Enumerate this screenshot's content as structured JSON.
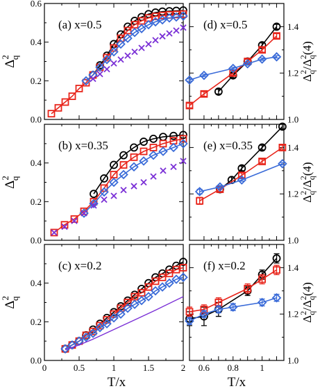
{
  "figure": {
    "x_label_left": "T/x",
    "x_label_right": "T/x",
    "y_label_left": {
      "base": "Δ",
      "sup": "2",
      "sub": "q"
    },
    "y_label_right": {
      "base1": "Δ",
      "sup1": "2",
      "sub1": "q",
      "slash": "/",
      "base2": "Δ",
      "sup2": "2",
      "sub2": "q",
      "arg": "(4)"
    }
  },
  "colors": {
    "black": "#000000",
    "red": "#e8251b",
    "blue": "#3a6bd8",
    "purple": "#7a2fd6"
  },
  "chart_data": [
    {
      "id": "a",
      "type": "scatter",
      "panel_label": "(a) x=0.5",
      "xlim": [
        0,
        2
      ],
      "ylim": [
        0,
        0.6
      ],
      "x_ticks": [
        0,
        0.5,
        1,
        1.5,
        2
      ],
      "x_tick_labels": [],
      "y_ticks": [
        0,
        0.2,
        0.4,
        0.6
      ],
      "y_tick_labels": [
        "0.0",
        "0.2",
        "0.4",
        "0.6"
      ],
      "series": [
        {
          "marker": "circle",
          "color": "black",
          "line": true,
          "x": [
            0.7,
            0.8,
            0.9,
            1.0,
            1.1,
            1.2,
            1.3,
            1.4,
            1.5,
            1.6,
            1.7,
            1.8,
            1.9,
            2.0
          ],
          "y": [
            0.23,
            0.28,
            0.33,
            0.39,
            0.44,
            0.48,
            0.51,
            0.53,
            0.545,
            0.553,
            0.558,
            0.56,
            0.562,
            0.564
          ]
        },
        {
          "marker": "square",
          "color": "red",
          "line": true,
          "x": [
            0.1,
            0.2,
            0.3,
            0.4,
            0.5,
            0.6,
            0.7,
            0.8,
            0.9,
            1.0,
            1.1,
            1.2,
            1.3,
            1.4,
            1.5,
            1.6,
            1.7,
            1.8,
            1.9,
            2.0
          ],
          "y": [
            0.03,
            0.06,
            0.09,
            0.12,
            0.16,
            0.19,
            0.23,
            0.27,
            0.32,
            0.37,
            0.42,
            0.46,
            0.49,
            0.51,
            0.525,
            0.533,
            0.538,
            0.541,
            0.543,
            0.545
          ]
        },
        {
          "marker": "diamond",
          "color": "blue",
          "line": true,
          "x": [
            0.6,
            0.7,
            0.8,
            0.9,
            1.0,
            1.1,
            1.2,
            1.3,
            1.4,
            1.5,
            1.6,
            1.7,
            1.8,
            1.9,
            2.0
          ],
          "y": [
            0.2,
            0.23,
            0.27,
            0.31,
            0.35,
            0.39,
            0.42,
            0.45,
            0.47,
            0.49,
            0.505,
            0.515,
            0.525,
            0.53,
            0.535
          ]
        },
        {
          "marker": "cross",
          "color": "purple",
          "line": false,
          "x": [
            0.7,
            0.8,
            0.9,
            1.0,
            1.1,
            1.2,
            1.3,
            1.4,
            1.5,
            1.6,
            1.7,
            1.8,
            1.9,
            2.0
          ],
          "y": [
            0.21,
            0.235,
            0.26,
            0.29,
            0.31,
            0.33,
            0.35,
            0.37,
            0.39,
            0.41,
            0.43,
            0.445,
            0.46,
            0.475
          ]
        }
      ]
    },
    {
      "id": "b",
      "type": "scatter",
      "panel_label": "(b) x=0.35",
      "xlim": [
        0,
        2
      ],
      "ylim": [
        0,
        0.6
      ],
      "x_ticks": [
        0,
        0.5,
        1,
        1.5,
        2
      ],
      "x_tick_labels": [],
      "y_ticks": [
        0,
        0.2,
        0.4
      ],
      "y_tick_labels": [
        "0.0",
        "0.2",
        "0.4"
      ],
      "series": [
        {
          "marker": "circle",
          "color": "black",
          "line": true,
          "x": [
            0.71,
            0.86,
            1.0,
            1.14,
            1.29,
            1.43,
            1.57,
            1.71,
            1.86,
            2.0
          ],
          "y": [
            0.24,
            0.32,
            0.39,
            0.44,
            0.48,
            0.51,
            0.525,
            0.535,
            0.54,
            0.545
          ]
        },
        {
          "marker": "square",
          "color": "red",
          "line": true,
          "x": [
            0.14,
            0.29,
            0.43,
            0.57,
            0.71,
            0.86,
            1.0,
            1.14,
            1.29,
            1.43,
            1.57,
            1.71,
            1.86,
            2.0
          ],
          "y": [
            0.04,
            0.08,
            0.11,
            0.15,
            0.2,
            0.27,
            0.34,
            0.39,
            0.43,
            0.46,
            0.48,
            0.5,
            0.515,
            0.525
          ]
        },
        {
          "marker": "diamond",
          "color": "blue",
          "line": true,
          "x": [
            0.57,
            0.71,
            0.86,
            1.0,
            1.14,
            1.29,
            1.43,
            1.57,
            1.71,
            1.86,
            2.0
          ],
          "y": [
            0.14,
            0.19,
            0.25,
            0.3,
            0.34,
            0.38,
            0.41,
            0.44,
            0.46,
            0.48,
            0.5
          ]
        },
        {
          "marker": "cross",
          "color": "purple",
          "line": false,
          "x": [
            0.14,
            0.29,
            0.43,
            0.57,
            0.71,
            0.86,
            1.0,
            1.14,
            1.29,
            1.43,
            1.57,
            1.71,
            1.86,
            2.0
          ],
          "y": [
            0.04,
            0.07,
            0.1,
            0.14,
            0.18,
            0.21,
            0.23,
            0.26,
            0.28,
            0.3,
            0.33,
            0.36,
            0.38,
            0.41
          ]
        }
      ]
    },
    {
      "id": "c",
      "type": "scatter",
      "panel_label": "(c) x=0.2",
      "xlim": [
        0,
        2
      ],
      "ylim": [
        0,
        0.6
      ],
      "x_ticks": [
        0,
        0.5,
        1,
        1.5,
        2
      ],
      "x_tick_labels": [
        "0",
        "0.5",
        "1",
        "1.5",
        "2"
      ],
      "y_ticks": [
        0,
        0.2,
        0.4
      ],
      "y_tick_labels": [
        "0.0",
        "0.2",
        "0.4"
      ],
      "series": [
        {
          "marker": "circle",
          "color": "black",
          "line": true,
          "x": [
            0.3,
            0.4,
            0.5,
            0.6,
            0.7,
            0.8,
            0.9,
            1.0,
            1.1,
            1.2,
            1.3,
            1.4,
            1.5,
            1.6,
            1.7,
            1.8,
            1.9,
            2.0
          ],
          "y": [
            0.06,
            0.08,
            0.1,
            0.13,
            0.16,
            0.19,
            0.22,
            0.25,
            0.28,
            0.31,
            0.34,
            0.37,
            0.4,
            0.43,
            0.45,
            0.47,
            0.49,
            0.51
          ]
        },
        {
          "marker": "square",
          "color": "red",
          "line": true,
          "x": [
            0.3,
            0.4,
            0.5,
            0.6,
            0.7,
            0.8,
            0.9,
            1.0,
            1.1,
            1.2,
            1.3,
            1.4,
            1.5,
            1.6,
            1.7,
            1.8,
            1.9,
            2.0
          ],
          "y": [
            0.06,
            0.08,
            0.1,
            0.13,
            0.15,
            0.18,
            0.21,
            0.24,
            0.27,
            0.3,
            0.33,
            0.35,
            0.38,
            0.41,
            0.43,
            0.45,
            0.47,
            0.48
          ]
        },
        {
          "marker": "diamond",
          "color": "blue",
          "line": true,
          "x": [
            0.3,
            0.4,
            0.5,
            0.6,
            0.7,
            0.8,
            0.9,
            1.0,
            1.1,
            1.2,
            1.3,
            1.4,
            1.5,
            1.6,
            1.7,
            1.8,
            1.9,
            2.0
          ],
          "y": [
            0.06,
            0.08,
            0.1,
            0.12,
            0.14,
            0.17,
            0.19,
            0.22,
            0.24,
            0.27,
            0.29,
            0.31,
            0.33,
            0.36,
            0.38,
            0.4,
            0.42,
            0.43
          ]
        },
        {
          "marker": "none",
          "color": "purple",
          "line": true,
          "x": [
            0.3,
            0.5,
            0.7,
            1.0,
            1.3,
            1.6,
            2.0
          ],
          "y": [
            0.055,
            0.08,
            0.11,
            0.16,
            0.21,
            0.26,
            0.33
          ]
        }
      ]
    },
    {
      "id": "d",
      "type": "scatter",
      "panel_label": "(d) x=0.5",
      "xlim": [
        0.5,
        1.15
      ],
      "ylim": [
        1.0,
        1.5
      ],
      "x_ticks": [
        0.6,
        0.7,
        0.8,
        0.9,
        1.0,
        1.1
      ],
      "x_tick_labels": [],
      "y_ticks": [
        1.0,
        1.2,
        1.4
      ],
      "y_tick_labels": [
        "1.0",
        "1.2",
        "1.4"
      ],
      "series": [
        {
          "marker": "circle",
          "color": "black",
          "line": true,
          "err": [
            0.01,
            0.01,
            0.01,
            0.01,
            0.01
          ],
          "x": [
            0.7,
            0.8,
            0.9,
            1.0,
            1.1
          ],
          "y": [
            1.12,
            1.19,
            1.25,
            1.32,
            1.4
          ]
        },
        {
          "marker": "square",
          "color": "red",
          "line": true,
          "err": [
            0.01,
            0.01,
            0.01,
            0.01,
            0.01,
            0.01
          ],
          "x": [
            0.5,
            0.6,
            0.8,
            0.9,
            1.0,
            1.1
          ],
          "y": [
            1.06,
            1.11,
            1.2,
            1.25,
            1.3,
            1.36
          ]
        },
        {
          "marker": "diamond",
          "color": "blue",
          "line": true,
          "err": [
            0.005,
            0.005,
            0.005,
            0.005,
            0.005,
            0.005
          ],
          "x": [
            0.5,
            0.6,
            0.8,
            0.9,
            1.0,
            1.1
          ],
          "y": [
            1.17,
            1.19,
            1.22,
            1.24,
            1.26,
            1.27
          ]
        }
      ]
    },
    {
      "id": "e",
      "type": "scatter",
      "panel_label": "(e) x=0.35",
      "xlim": [
        0.5,
        1.15
      ],
      "ylim": [
        1.0,
        1.5
      ],
      "x_ticks": [
        0.6,
        0.7,
        0.8,
        0.9,
        1.0,
        1.1
      ],
      "x_tick_labels": [],
      "y_ticks": [
        1.0,
        1.2,
        1.4
      ],
      "y_tick_labels": [
        "1.0",
        "1.2",
        "1.4"
      ],
      "series": [
        {
          "marker": "circle",
          "color": "black",
          "line": true,
          "err": [
            0.01,
            0.012,
            0.01,
            0.01,
            0.01
          ],
          "x": [
            0.71,
            0.79,
            0.86,
            1.0,
            1.14
          ],
          "y": [
            1.22,
            1.26,
            1.31,
            1.4,
            1.49
          ]
        },
        {
          "marker": "square",
          "color": "red",
          "line": true,
          "err": [
            0.015,
            0.01,
            0.01,
            0.01,
            0.01
          ],
          "x": [
            0.57,
            0.71,
            0.86,
            1.0,
            1.14
          ],
          "y": [
            1.17,
            1.22,
            1.28,
            1.34,
            1.4
          ]
        },
        {
          "marker": "diamond",
          "color": "blue",
          "line": true,
          "err": [
            0.01,
            0.005,
            0.005,
            0.005
          ],
          "x": [
            0.57,
            0.71,
            0.86,
            1.14
          ],
          "y": [
            1.21,
            1.23,
            1.26,
            1.33
          ]
        }
      ]
    },
    {
      "id": "f",
      "type": "scatter",
      "panel_label": "(f) x=0.2",
      "xlim": [
        0.5,
        1.15
      ],
      "ylim": [
        1.0,
        1.5
      ],
      "x_ticks": [
        0.6,
        0.7,
        0.8,
        0.9,
        1.0,
        1.1
      ],
      "x_tick_labels": [
        "0.6",
        "0.8",
        "1"
      ],
      "x_tick_label_values": [
        0.6,
        0.8,
        1.0
      ],
      "y_ticks": [
        1.0,
        1.2,
        1.4
      ],
      "y_tick_labels": [
        "1.0",
        "1.2",
        "1.4"
      ],
      "series": [
        {
          "marker": "circle",
          "color": "black",
          "line": true,
          "err": [
            0.03,
            0.04,
            0.03,
            0.02,
            0.02,
            0.02
          ],
          "x": [
            0.5,
            0.6,
            0.7,
            0.9,
            1.0,
            1.1
          ],
          "y": [
            1.18,
            1.19,
            1.22,
            1.3,
            1.37,
            1.44
          ]
        },
        {
          "marker": "square",
          "color": "red",
          "line": true,
          "err": [
            0.02,
            0.02,
            0.02,
            0.02,
            0.02,
            0.02
          ],
          "x": [
            0.5,
            0.6,
            0.7,
            0.9,
            1.0,
            1.1
          ],
          "y": [
            1.21,
            1.22,
            1.25,
            1.31,
            1.35,
            1.39
          ]
        },
        {
          "marker": "diamond",
          "color": "blue",
          "line": true,
          "err": [
            0.015,
            0.015,
            0.015,
            0.015,
            0.015,
            0.015
          ],
          "x": [
            0.5,
            0.6,
            0.7,
            0.8,
            1.0,
            1.1
          ],
          "y": [
            1.17,
            1.2,
            1.22,
            1.23,
            1.25,
            1.27
          ]
        }
      ]
    }
  ]
}
